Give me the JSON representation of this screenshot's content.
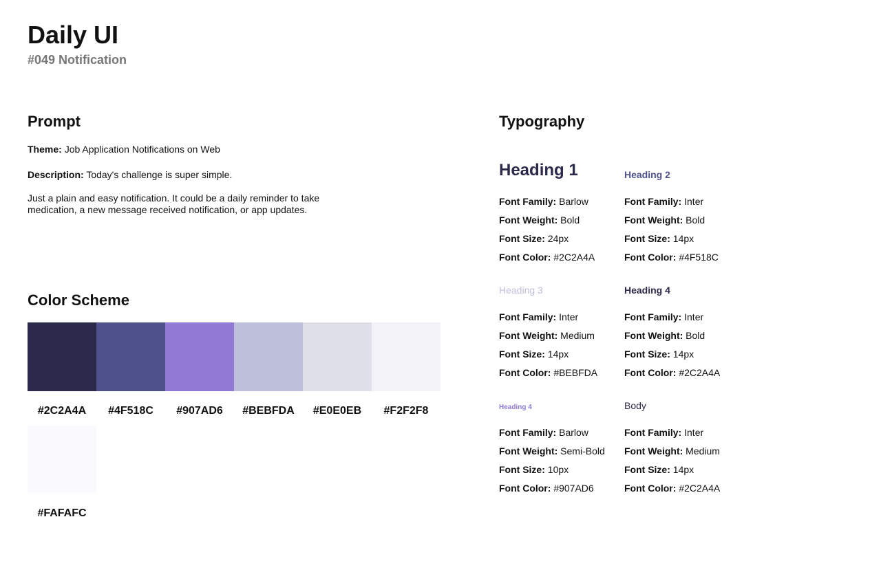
{
  "header": {
    "title": "Daily UI",
    "subtitle": "#049 Notification"
  },
  "prompt": {
    "heading": "Prompt",
    "theme_label": "Theme:",
    "theme": "Job Application Notifications on Web",
    "description_label": "Description:",
    "description": "Today's challenge is super simple.",
    "body": "Just a plain and easy notification. It could be a daily reminder to take medication, a new message received notification, or app updates."
  },
  "color_scheme": {
    "heading": "Color Scheme",
    "swatches": [
      "#2C2A4A",
      "#4F518C",
      "#907AD6",
      "#BEBFDA",
      "#E0E0EB",
      "#F2F2F8",
      "#FAFAFC"
    ]
  },
  "typography": {
    "heading": "Typography",
    "styles": [
      {
        "sample": "Heading 1",
        "props": [
          {
            "label": "Font Family:",
            "value": "Barlow"
          },
          {
            "label": "Font Weight:",
            "value": "Bold"
          },
          {
            "label": "Font Size:",
            "value": "24px"
          },
          {
            "label": "Font Color:",
            "value": "#2C2A4A"
          }
        ]
      },
      {
        "sample": "Heading 2",
        "props": [
          {
            "label": "Font Family:",
            "value": "Inter"
          },
          {
            "label": "Font Weight:",
            "value": "Bold"
          },
          {
            "label": "Font Size:",
            "value": "14px"
          },
          {
            "label": "Font Color:",
            "value": "#4F518C"
          }
        ]
      },
      {
        "sample": "Heading 3",
        "props": [
          {
            "label": "Font Family:",
            "value": "Inter"
          },
          {
            "label": "Font Weight:",
            "value": "Medium"
          },
          {
            "label": "Font Size:",
            "value": "14px"
          },
          {
            "label": "Font Color:",
            "value": "#BEBFDA"
          }
        ]
      },
      {
        "sample": "Heading 4",
        "props": [
          {
            "label": "Font Family:",
            "value": "Inter"
          },
          {
            "label": "Font Weight:",
            "value": "Bold"
          },
          {
            "label": "Font Size:",
            "value": "14px"
          },
          {
            "label": "Font Color:",
            "value": "#2C2A4A"
          }
        ]
      },
      {
        "sample": "Heading 4",
        "props": [
          {
            "label": "Font Family:",
            "value": "Barlow"
          },
          {
            "label": "Font Weight:",
            "value": "Semi-Bold"
          },
          {
            "label": "Font Size:",
            "value": "10px"
          },
          {
            "label": "Font Color:",
            "value": "#907AD6"
          }
        ]
      },
      {
        "sample": "Body",
        "props": [
          {
            "label": "Font Family:",
            "value": "Inter"
          },
          {
            "label": "Font Weight:",
            "value": "Medium"
          },
          {
            "label": "Font Size:",
            "value": "14px"
          },
          {
            "label": "Font Color:",
            "value": "#2C2A4A"
          }
        ]
      }
    ]
  }
}
